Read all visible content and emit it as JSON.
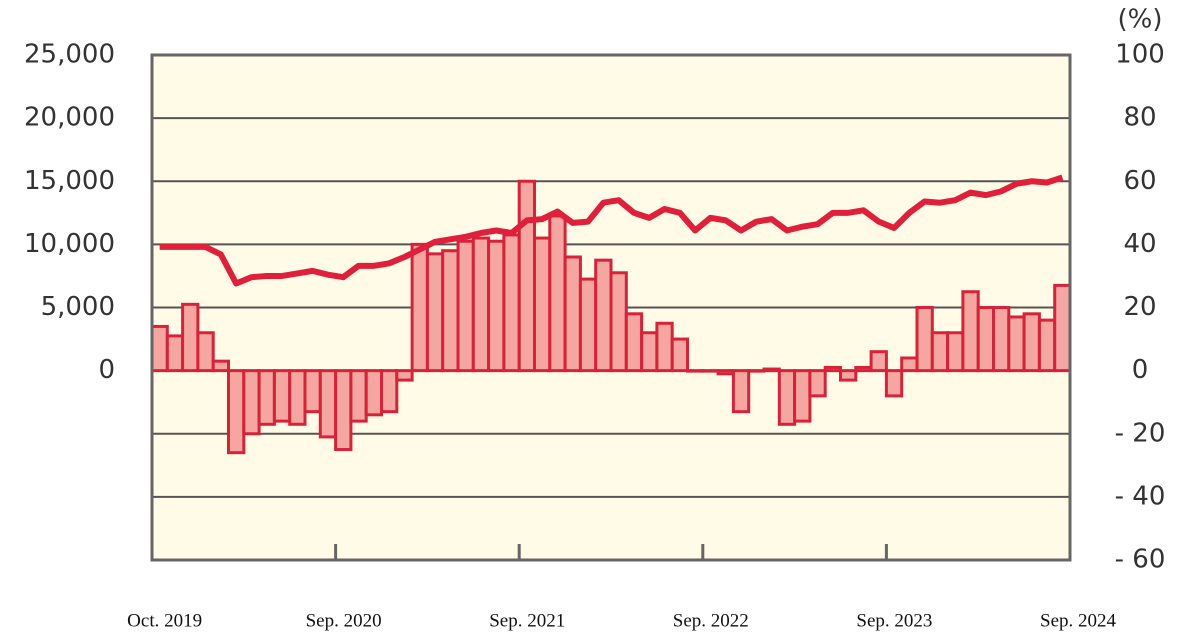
{
  "chart_data": {
    "type": "bar-line",
    "categories": [
      "Oct. 2019",
      null,
      null,
      null,
      null,
      null,
      null,
      null,
      null,
      null,
      null,
      "Sep. 2020",
      null,
      null,
      null,
      null,
      null,
      null,
      null,
      null,
      null,
      null,
      null,
      "Sep. 2021",
      null,
      null,
      null,
      null,
      null,
      null,
      null,
      null,
      null,
      null,
      null,
      "Sep. 2022",
      null,
      null,
      null,
      null,
      null,
      null,
      null,
      null,
      null,
      null,
      null,
      "Sep. 2023",
      null,
      null,
      null,
      null,
      null,
      null,
      null,
      null,
      null,
      null,
      null,
      "Sep. 2024"
    ],
    "series": [
      {
        "kind": "bar",
        "axis": "y2",
        "color": "#f4a6a0",
        "edge": "#d9223a",
        "values": [
          14,
          11,
          21,
          12,
          3,
          -26,
          -20,
          -17,
          -16,
          -17,
          -13,
          -21,
          -25,
          -16,
          -14,
          -13,
          -3,
          40,
          37,
          38,
          41,
          42,
          41,
          43,
          60,
          42,
          49,
          36,
          29,
          35,
          31,
          18,
          12,
          15,
          10,
          0,
          0,
          -1,
          -13,
          0,
          0.5,
          -17,
          -16,
          -8,
          1,
          -3,
          1,
          6,
          -8,
          4,
          20,
          12,
          12,
          25,
          20,
          20,
          17,
          18,
          16,
          27
        ]
      },
      {
        "kind": "line",
        "axis": "y",
        "color": "#e0203a",
        "values": [
          9800,
          9800,
          9800,
          9800,
          9200,
          6900,
          7400,
          7500,
          7500,
          7700,
          7900,
          7600,
          7400,
          8300,
          8300,
          8500,
          9000,
          9600,
          10200,
          10400,
          10600,
          10900,
          11100,
          10900,
          11900,
          12000,
          12600,
          11700,
          11800,
          13300,
          13500,
          12500,
          12100,
          12800,
          12500,
          11100,
          12100,
          11900,
          11100,
          11800,
          12000,
          11100,
          11400,
          11600,
          12500,
          12500,
          12700,
          11800,
          11300,
          12500,
          13400,
          13300,
          13500,
          14100,
          13900,
          14200,
          14800,
          15000,
          14900,
          15300
        ]
      }
    ],
    "ylim": [
      -15000,
      25000
    ],
    "yticks": [
      0,
      {
        "value": 5000,
        "label": "5,000"
      },
      {
        "value": 10000,
        "label": "10,000"
      },
      {
        "value": 15000,
        "label": "15,000"
      },
      {
        "value": 20000,
        "label": "20,000"
      },
      {
        "value": 25000,
        "label": "25,000"
      }
    ],
    "y2lim": [
      -60,
      100
    ],
    "y2ticks": [
      {
        "value": -60,
        "label": "- 60"
      },
      {
        "value": -40,
        "label": "- 40"
      },
      {
        "value": -20,
        "label": "- 20"
      },
      0,
      20,
      40,
      60,
      80,
      100
    ],
    "y2_label": "(%)",
    "background": "#fffbe6",
    "grid": true
  }
}
